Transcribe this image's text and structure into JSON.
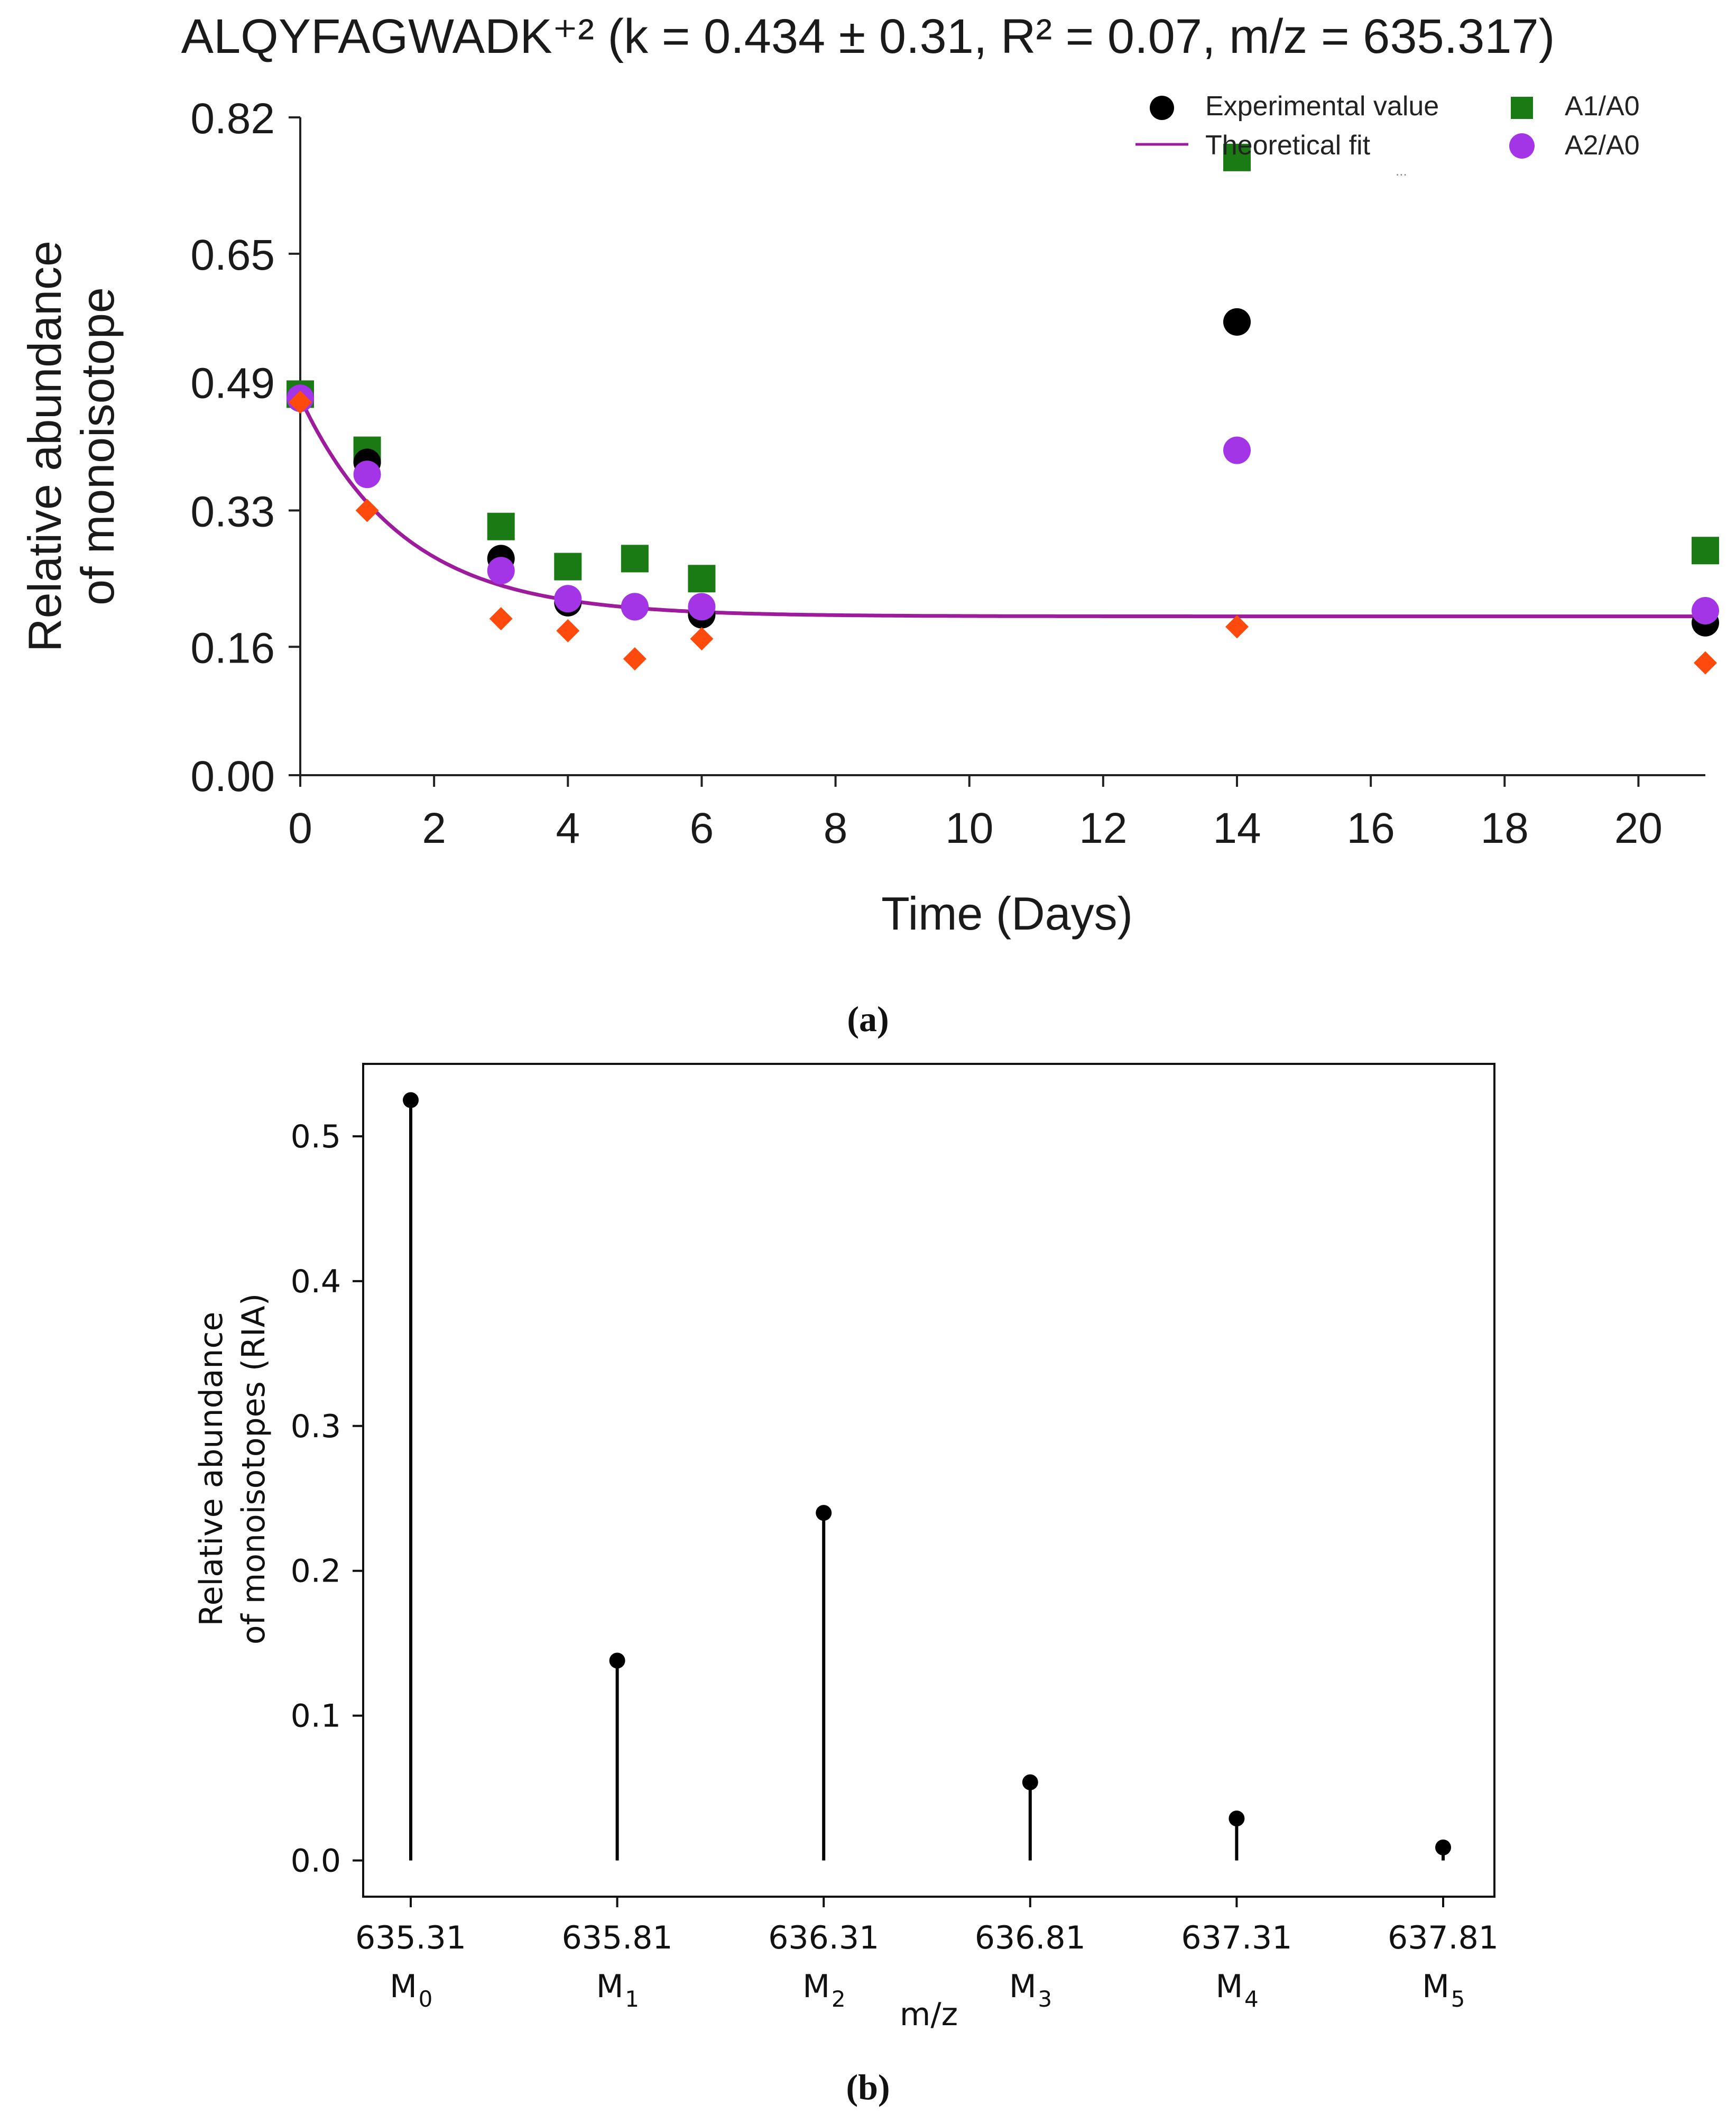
{
  "chart_data": [
    {
      "type": "scatter",
      "panel": "a",
      "title": "ALQYFAGWADK⁺² (k = 0.434 ± 0.31, R² = 0.07, m/z = 635.317)",
      "xlabel": "Time (Days)",
      "ylabel_line1": "Relative abundance",
      "ylabel_line2": "of monoisotope",
      "xlim": [
        0,
        21
      ],
      "ylim": [
        0,
        0.82
      ],
      "xticks": [
        "0",
        "2",
        "4",
        "6",
        "8",
        "10",
        "12",
        "14",
        "16",
        "18",
        "20"
      ],
      "yticks": [
        "0.00",
        "0.16",
        "0.33",
        "0.49",
        "0.65",
        "0.82"
      ],
      "ytick_values": [
        0.0,
        0.16,
        0.33,
        0.49,
        0.65,
        0.82
      ],
      "legend": {
        "placement": "top-right",
        "experimental": "Experimental value",
        "fit": "Theoretical fit",
        "a1": "A1/A0",
        "a2": "A2/A0",
        "more": "..."
      },
      "series": [
        {
          "name": "Experimental value",
          "marker": "circle",
          "color": "#000000",
          "x": [
            0,
            1,
            3,
            4,
            5,
            6,
            14,
            21
          ],
          "y": [
            0.47,
            0.39,
            0.27,
            0.215,
            0.21,
            0.2,
            0.565,
            0.19
          ]
        },
        {
          "name": "A1/A0",
          "marker": "square",
          "color": "#1a7a14",
          "x": [
            0,
            1,
            3,
            4,
            5,
            6,
            14,
            21
          ],
          "y": [
            0.475,
            0.405,
            0.31,
            0.26,
            0.27,
            0.245,
            0.77,
            0.28
          ]
        },
        {
          "name": "A2/A0",
          "marker": "circle",
          "color": "#a335e6",
          "x": [
            0,
            1,
            3,
            4,
            5,
            6,
            14,
            21
          ],
          "y": [
            0.47,
            0.375,
            0.255,
            0.22,
            0.21,
            0.21,
            0.405,
            0.205
          ]
        },
        {
          "name": "Orange",
          "marker": "diamond",
          "color": "#ff4a0d",
          "x": [
            0,
            1,
            3,
            4,
            5,
            6,
            14,
            21
          ],
          "y": [
            0.465,
            0.33,
            0.195,
            0.18,
            0.145,
            0.17,
            0.185,
            0.14
          ]
        }
      ],
      "fit": {
        "name": "Theoretical fit",
        "color": "#9d1c9d",
        "y0": 0.47,
        "yinf": 0.198,
        "k": 0.434
      },
      "caption": "(a)"
    },
    {
      "type": "stem",
      "panel": "b",
      "xlabel": "m/z",
      "ylabel_line1": "Relative abundance",
      "ylabel_line2": "of monoisotopes (RIA)",
      "ylim": [
        -0.025,
        0.55
      ],
      "yticks": [
        "0.0",
        "0.1",
        "0.2",
        "0.3",
        "0.4",
        "0.5"
      ],
      "ytick_values": [
        0.0,
        0.1,
        0.2,
        0.3,
        0.4,
        0.5
      ],
      "categories": [
        "635.31",
        "635.81",
        "636.31",
        "636.81",
        "637.31",
        "637.81"
      ],
      "isotope_labels": [
        "M",
        "M",
        "M",
        "M",
        "M",
        "M"
      ],
      "isotope_subscripts": [
        "0",
        "1",
        "2",
        "3",
        "4",
        "5"
      ],
      "values": [
        0.525,
        0.138,
        0.24,
        0.054,
        0.029,
        0.009
      ],
      "caption": "(b)"
    }
  ]
}
